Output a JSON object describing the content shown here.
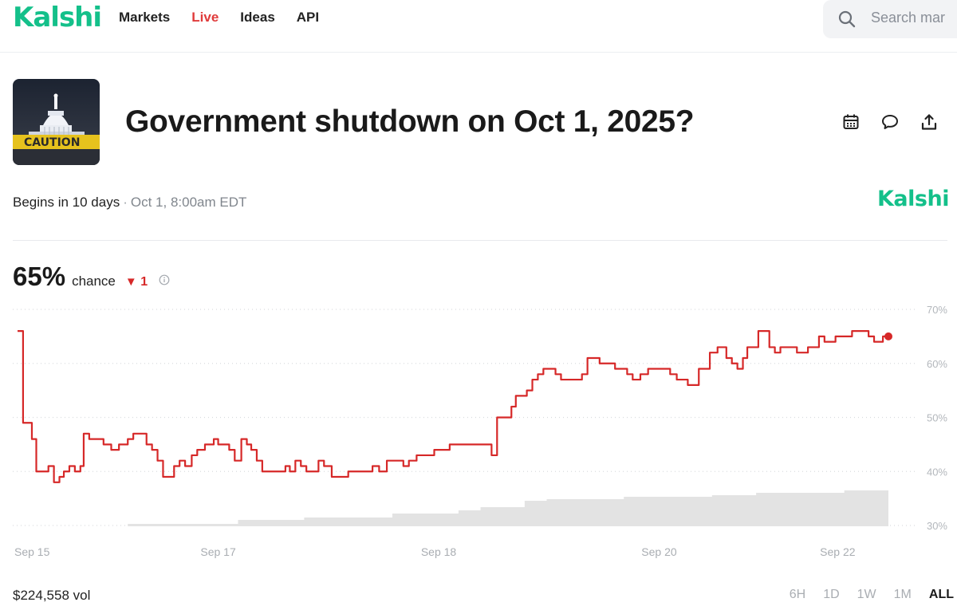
{
  "header": {
    "logo": "Kalshi",
    "nav": [
      {
        "label": "Markets"
      },
      {
        "label": "Live"
      },
      {
        "label": "Ideas"
      },
      {
        "label": "API"
      }
    ],
    "search_placeholder": "Search mar"
  },
  "market": {
    "thumbnail_text": "CAUTION",
    "title": "Government shutdown on Oct 1, 2025?",
    "begins": "Begins in 10 days",
    "separator": "·",
    "when": "Oct 1, 8:00am EDT",
    "brand": "Kalshi",
    "actions": [
      "calendar-icon",
      "comment-icon",
      "share-icon"
    ]
  },
  "odds": {
    "percent": "65%",
    "label": "chance",
    "delta_symbol": "▼",
    "delta": "1"
  },
  "volume": "$224,558 vol",
  "time_ranges": [
    {
      "label": "6H",
      "active": false
    },
    {
      "label": "1D",
      "active": false
    },
    {
      "label": "1W",
      "active": false
    },
    {
      "label": "1M",
      "active": false
    },
    {
      "label": "ALL",
      "active": true
    }
  ],
  "colors": {
    "brand_green": "#14c08a",
    "live_red": "#e03b3b",
    "line_red": "#d62828",
    "volume_gray": "#e3e3e3"
  },
  "chart_data": {
    "type": "line",
    "y_unit": "%",
    "ylim": [
      30,
      70
    ],
    "y_ticks": [
      "70%",
      "60%",
      "50%",
      "40%",
      "30%"
    ],
    "x_ticks": [
      "Sep 15",
      "Sep 17",
      "Sep 18",
      "Sep 20",
      "Sep 22"
    ],
    "x_tick_positions_days": [
      0,
      1.82,
      3.82,
      5.82,
      7.6
    ],
    "x_range_days": [
      0,
      7.9
    ],
    "grid": "dotted horizontal",
    "series": [
      {
        "color": "#d62828",
        "points": [
          [
            0.0,
            66
          ],
          [
            0.03,
            66
          ],
          [
            0.05,
            49
          ],
          [
            0.1,
            49
          ],
          [
            0.13,
            46
          ],
          [
            0.17,
            40
          ],
          [
            0.23,
            40
          ],
          [
            0.28,
            41
          ],
          [
            0.33,
            38
          ],
          [
            0.38,
            39
          ],
          [
            0.42,
            40
          ],
          [
            0.47,
            41
          ],
          [
            0.52,
            40
          ],
          [
            0.57,
            41
          ],
          [
            0.6,
            47
          ],
          [
            0.65,
            46
          ],
          [
            0.72,
            46
          ],
          [
            0.78,
            45
          ],
          [
            0.85,
            44
          ],
          [
            0.92,
            45
          ],
          [
            1.0,
            46
          ],
          [
            1.05,
            47
          ],
          [
            1.12,
            47
          ],
          [
            1.17,
            45
          ],
          [
            1.22,
            44
          ],
          [
            1.27,
            42
          ],
          [
            1.32,
            39
          ],
          [
            1.38,
            39
          ],
          [
            1.42,
            41
          ],
          [
            1.47,
            42
          ],
          [
            1.52,
            41
          ],
          [
            1.58,
            43
          ],
          [
            1.63,
            44
          ],
          [
            1.7,
            45
          ],
          [
            1.78,
            46
          ],
          [
            1.82,
            45
          ],
          [
            1.87,
            45
          ],
          [
            1.92,
            44
          ],
          [
            1.97,
            42
          ],
          [
            2.03,
            46
          ],
          [
            2.08,
            45
          ],
          [
            2.12,
            44
          ],
          [
            2.17,
            42
          ],
          [
            2.22,
            40
          ],
          [
            2.3,
            40
          ],
          [
            2.38,
            40
          ],
          [
            2.43,
            41
          ],
          [
            2.47,
            40
          ],
          [
            2.52,
            42
          ],
          [
            2.57,
            41
          ],
          [
            2.62,
            40
          ],
          [
            2.68,
            40
          ],
          [
            2.73,
            42
          ],
          [
            2.78,
            41
          ],
          [
            2.85,
            39
          ],
          [
            2.92,
            39
          ],
          [
            3.0,
            40
          ],
          [
            3.08,
            40
          ],
          [
            3.15,
            40
          ],
          [
            3.22,
            41
          ],
          [
            3.28,
            40
          ],
          [
            3.35,
            42
          ],
          [
            3.42,
            42
          ],
          [
            3.5,
            41
          ],
          [
            3.55,
            42
          ],
          [
            3.62,
            43
          ],
          [
            3.7,
            43
          ],
          [
            3.78,
            44
          ],
          [
            3.85,
            44
          ],
          [
            3.92,
            45
          ],
          [
            4.0,
            45
          ],
          [
            4.08,
            45
          ],
          [
            4.15,
            45
          ],
          [
            4.22,
            45
          ],
          [
            4.27,
            45
          ],
          [
            4.3,
            43
          ],
          [
            4.35,
            50
          ],
          [
            4.42,
            50
          ],
          [
            4.48,
            52
          ],
          [
            4.52,
            54
          ],
          [
            4.57,
            54
          ],
          [
            4.62,
            55
          ],
          [
            4.67,
            57
          ],
          [
            4.72,
            58
          ],
          [
            4.77,
            59
          ],
          [
            4.82,
            59
          ],
          [
            4.88,
            58
          ],
          [
            4.93,
            57
          ],
          [
            5.0,
            57
          ],
          [
            5.07,
            57
          ],
          [
            5.12,
            58
          ],
          [
            5.17,
            61
          ],
          [
            5.22,
            61
          ],
          [
            5.28,
            60
          ],
          [
            5.35,
            60
          ],
          [
            5.42,
            59
          ],
          [
            5.48,
            59
          ],
          [
            5.53,
            58
          ],
          [
            5.58,
            57
          ],
          [
            5.65,
            58
          ],
          [
            5.72,
            59
          ],
          [
            5.78,
            59
          ],
          [
            5.85,
            59
          ],
          [
            5.92,
            58
          ],
          [
            5.98,
            57
          ],
          [
            6.03,
            57
          ],
          [
            6.08,
            56
          ],
          [
            6.13,
            56
          ],
          [
            6.18,
            59
          ],
          [
            6.23,
            59
          ],
          [
            6.28,
            62
          ],
          [
            6.35,
            63
          ],
          [
            6.4,
            63
          ],
          [
            6.43,
            61
          ],
          [
            6.48,
            60
          ],
          [
            6.53,
            59
          ],
          [
            6.58,
            61
          ],
          [
            6.62,
            63
          ],
          [
            6.67,
            63
          ],
          [
            6.72,
            66
          ],
          [
            6.77,
            66
          ],
          [
            6.82,
            63
          ],
          [
            6.87,
            62
          ],
          [
            6.92,
            63
          ],
          [
            6.97,
            63
          ],
          [
            7.02,
            63
          ],
          [
            7.07,
            62
          ],
          [
            7.12,
            62
          ],
          [
            7.17,
            63
          ],
          [
            7.22,
            63
          ],
          [
            7.27,
            65
          ],
          [
            7.32,
            64
          ],
          [
            7.37,
            64
          ],
          [
            7.42,
            65
          ],
          [
            7.47,
            65
          ],
          [
            7.52,
            65
          ],
          [
            7.57,
            66
          ],
          [
            7.62,
            66
          ],
          [
            7.67,
            66
          ],
          [
            7.72,
            65
          ],
          [
            7.77,
            64
          ],
          [
            7.8,
            64
          ],
          [
            7.85,
            65
          ],
          [
            7.9,
            65
          ]
        ]
      }
    ],
    "volume_area": {
      "color": "#e3e3e3",
      "y_is_relative": true,
      "points": [
        [
          0.0,
          0.0
        ],
        [
          1.0,
          0.03
        ],
        [
          2.0,
          0.08
        ],
        [
          2.6,
          0.11
        ],
        [
          3.4,
          0.16
        ],
        [
          4.0,
          0.2
        ],
        [
          4.2,
          0.24
        ],
        [
          4.6,
          0.32
        ],
        [
          4.8,
          0.34
        ],
        [
          5.5,
          0.37
        ],
        [
          6.3,
          0.39
        ],
        [
          6.7,
          0.42
        ],
        [
          7.5,
          0.45
        ],
        [
          7.9,
          0.47
        ]
      ]
    }
  }
}
